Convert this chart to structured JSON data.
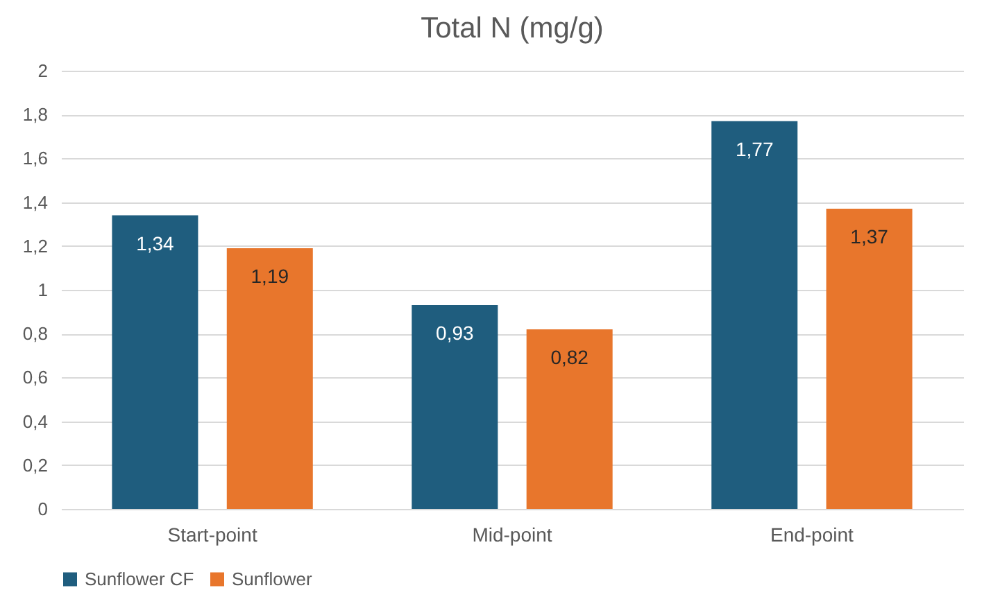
{
  "chart_data": {
    "type": "bar",
    "title": "Total N (mg/g)",
    "categories": [
      "Start-point",
      "Mid-point",
      "End-point"
    ],
    "series": [
      {
        "name": "Sunflower CF",
        "color": "#1f5d7e",
        "values": [
          1.34,
          0.93,
          1.77
        ],
        "value_labels": [
          "1,34",
          "0,93",
          "1,77"
        ]
      },
      {
        "name": "Sunflower",
        "color": "#e8762c",
        "values": [
          1.19,
          0.82,
          1.37
        ],
        "value_labels": [
          "1,19",
          "0,82",
          "1,37"
        ]
      }
    ],
    "ylim": [
      0,
      2
    ],
    "yticks": [
      0,
      {
        "value": 0.2,
        "label": "0,2"
      },
      {
        "value": 0.4,
        "label": "0,4"
      },
      {
        "value": 0.6,
        "label": "0,6"
      },
      {
        "value": 0.8,
        "label": "0,8"
      },
      1,
      {
        "value": 1.2,
        "label": "1,2"
      },
      {
        "value": 1.4,
        "label": "1,4"
      },
      {
        "value": 1.6,
        "label": "1,6"
      },
      {
        "value": 1.8,
        "label": "1,8"
      },
      2
    ],
    "grid": "y",
    "legend": "bottom"
  }
}
